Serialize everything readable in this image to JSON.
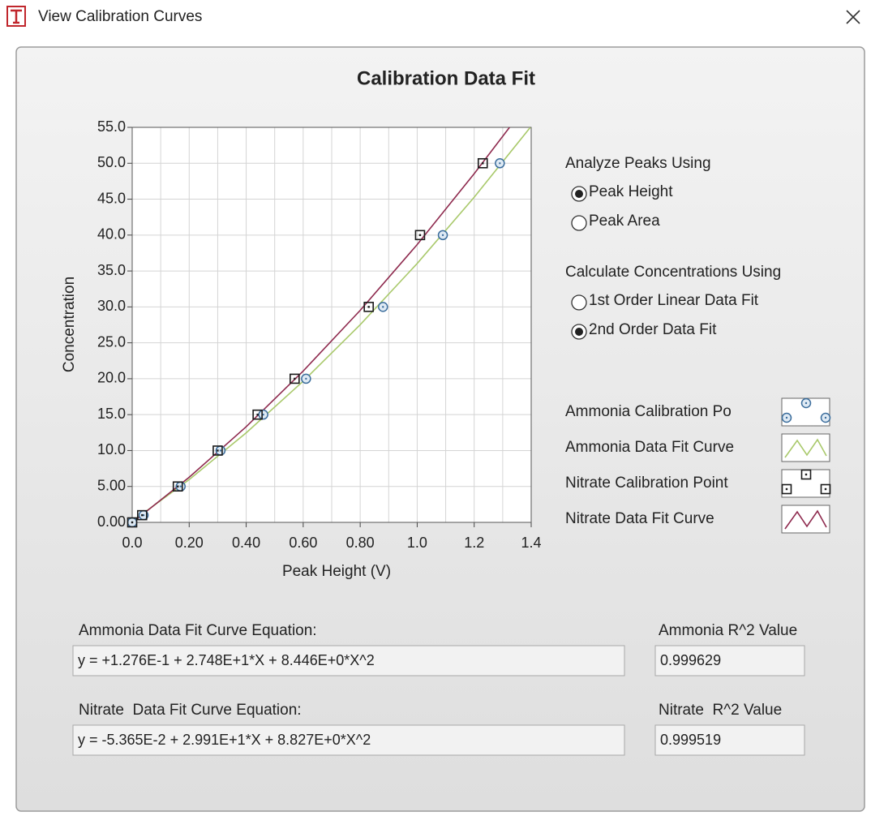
{
  "window": {
    "title": "View Calibration Curves"
  },
  "chart_data": {
    "type": "scatter",
    "title": "Calibration Data Fit",
    "x_label": "Peak Height (V)",
    "y_label": "Concentration",
    "xlim": [
      0,
      1.4
    ],
    "ylim": [
      0,
      55
    ],
    "xticks": [
      {
        "value": 0,
        "label": "0.0"
      },
      {
        "value": 0.2,
        "label": "0.20"
      },
      {
        "value": 0.4,
        "label": "0.40"
      },
      {
        "value": 0.6,
        "label": "0.60"
      },
      {
        "value": 0.8,
        "label": "0.80"
      },
      {
        "value": 1,
        "label": "1.0"
      },
      1.2,
      1.4
    ],
    "xminorticks": [
      0.1,
      0.3,
      0.5,
      0.7,
      0.9,
      1.1,
      1.3
    ],
    "yticks": [
      {
        "value": 0,
        "label": "0.00"
      },
      {
        "value": 5,
        "label": "5.00"
      },
      {
        "value": 10,
        "label": "10.0"
      },
      {
        "value": 15,
        "label": "15.0"
      },
      {
        "value": 20,
        "label": "20.0"
      },
      {
        "value": 25,
        "label": "25.0"
      },
      {
        "value": 30,
        "label": "30.0"
      },
      {
        "value": 35,
        "label": "35.0"
      },
      {
        "value": 40,
        "label": "40.0"
      },
      {
        "value": 45,
        "label": "45.0"
      },
      {
        "value": 50,
        "label": "50.0"
      },
      {
        "value": 55,
        "label": "55.0"
      }
    ],
    "grid": true,
    "series": [
      {
        "name": "Ammonia Calibration Po",
        "color": "#3b6d9c",
        "marker": "circle",
        "line": false,
        "x": [
          0,
          0.04,
          0.17,
          0.31,
          0.46,
          0.61,
          0.88,
          1.09,
          1.29
        ],
        "values": [
          0,
          1,
          5,
          10,
          15,
          20,
          30,
          40,
          50
        ]
      },
      {
        "name": "Ammonia Data Fit Curve",
        "color": "#a9c96b",
        "marker": "none",
        "line": true,
        "x": [
          0,
          0.2,
          0.4,
          0.6,
          0.8,
          1.0,
          1.2,
          1.397
        ],
        "values": [
          0.13,
          5.96,
          12.47,
          19.66,
          27.52,
          36.05,
          45.27,
          55
        ]
      },
      {
        "name": "Nitrate Calibration Point",
        "color": "#1a1a1a",
        "marker": "square",
        "line": false,
        "x": [
          0,
          0.035,
          0.16,
          0.3,
          0.44,
          0.57,
          0.83,
          1.01,
          1.23
        ],
        "values": [
          0,
          1,
          5,
          10,
          15,
          20,
          30,
          40,
          50
        ]
      },
      {
        "name": "Nitrate Data Fit Curve",
        "color": "#8e2a4e",
        "marker": "none",
        "line": true,
        "x": [
          0,
          0.2,
          0.4,
          0.6,
          0.8,
          1.0,
          1.2,
          1.324
        ],
        "values": [
          -0.05,
          6.28,
          13.32,
          21.07,
          29.52,
          38.68,
          48.55,
          55
        ]
      }
    ]
  },
  "analyze_peaks": {
    "label": "Analyze Peaks Using",
    "options": [
      "Peak Height",
      "Peak Area"
    ],
    "selected": 0
  },
  "calculate": {
    "label": "Calculate Concentrations Using",
    "options": [
      "1st Order Linear Data Fit",
      "2nd Order Data Fit"
    ],
    "selected": 1
  },
  "fields": [
    {
      "label": "Ammonia Data Fit Curve Equation:",
      "value": "y = +1.276E-1 + 2.748E+1*X + 8.446E+0*X^2"
    },
    {
      "label": "Ammonia R^2 Value",
      "value": "0.999629"
    },
    {
      "label": "Nitrate  Data Fit Curve Equation:",
      "value": "y = -5.365E-2 + 2.991E+1*X + 8.827E+0*X^2"
    },
    {
      "label": "Nitrate  R^2 Value",
      "value": "0.999519"
    }
  ]
}
